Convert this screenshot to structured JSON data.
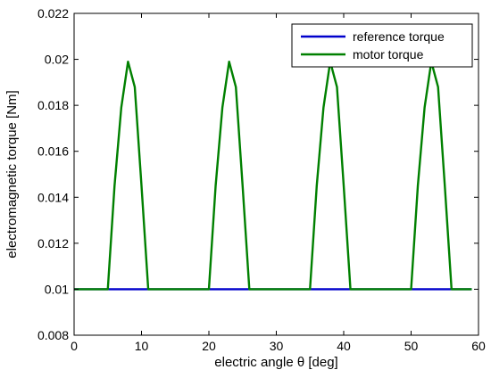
{
  "chart_data": {
    "type": "line",
    "title": "",
    "xlabel": "electric angle θ [deg]",
    "ylabel": "electromagnetic torque [Nm]",
    "xlim": [
      0,
      60
    ],
    "ylim": [
      0.008,
      0.022
    ],
    "xticks": [
      0,
      10,
      20,
      30,
      40,
      50,
      60
    ],
    "yticks": [
      0.008,
      0.01,
      0.012,
      0.014,
      0.016,
      0.018,
      0.02,
      0.022
    ],
    "ytick_labels": [
      "0.008",
      "0.01",
      "0.012",
      "0.014",
      "0.016",
      "0.018",
      "0.02",
      "0.022"
    ],
    "grid": false,
    "legend_position": "top-right",
    "series": [
      {
        "name": "reference torque",
        "color": "#0000cc",
        "x": [
          0,
          59
        ],
        "y": [
          0.01,
          0.01
        ]
      },
      {
        "name": "motor torque",
        "color": "#008000",
        "x": [
          0,
          5,
          6,
          7,
          8,
          9,
          10,
          11,
          20,
          21,
          22,
          23,
          24,
          25,
          26,
          35,
          36,
          37,
          38,
          39,
          40,
          41,
          50,
          51,
          52,
          53,
          54,
          55,
          56,
          59
        ],
        "y": [
          0.01,
          0.01,
          0.0145,
          0.0179,
          0.0199,
          0.0188,
          0.0145,
          0.01,
          0.01,
          0.0145,
          0.0179,
          0.0199,
          0.0188,
          0.0145,
          0.01,
          0.01,
          0.0145,
          0.0179,
          0.0199,
          0.0188,
          0.0145,
          0.01,
          0.01,
          0.0145,
          0.0179,
          0.0199,
          0.0188,
          0.0145,
          0.01,
          0.01
        ]
      }
    ]
  }
}
